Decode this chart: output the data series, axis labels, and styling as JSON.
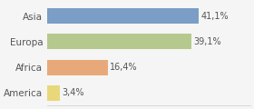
{
  "categories": [
    "America",
    "Africa",
    "Europa",
    "Asia"
  ],
  "values": [
    3.4,
    16.4,
    39.1,
    41.1
  ],
  "labels": [
    "3,4%",
    "16,4%",
    "39,1%",
    "41,1%"
  ],
  "bar_colors": [
    "#e8d87a",
    "#e8a97a",
    "#b5c98e",
    "#7a9ec6"
  ],
  "background_color": "#f5f5f5",
  "xlim": [
    0,
    55
  ],
  "figsize": [
    2.8,
    1.2
  ],
  "dpi": 100
}
